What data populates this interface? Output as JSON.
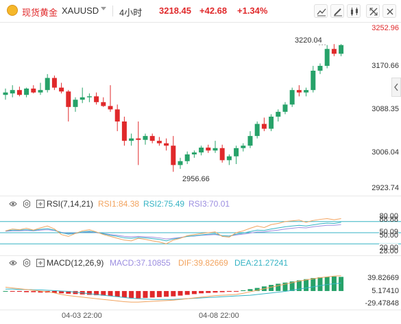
{
  "header": {
    "symbol_name": "现货黄金",
    "symbol_code": "XAUUSD",
    "timeframe": "4小时",
    "price": "3218.45",
    "change": "+42.68",
    "change_pct": "+1.34%",
    "colors": {
      "up": "#e0292b",
      "down": "#e0292b",
      "up_text": "#e0292b"
    }
  },
  "toolbar_icons": [
    "indicator-icon",
    "draw-icon",
    "candle-style-icon",
    "expand-icon",
    "close-icon"
  ],
  "price_axis": [
    "3252.96",
    "3170.66",
    "3088.35",
    "3006.04",
    "2923.74"
  ],
  "annotations": {
    "high": "3220.04",
    "low": "2956.66"
  },
  "rsi": {
    "title": "RSI(7,14,21)",
    "rsi1": "RSI1:84.38",
    "rsi2": "RSI2:75.49",
    "rsi3": "RSI3:70.01",
    "levels": [
      "80.00",
      "88.88",
      "50.09",
      "50.00",
      "20.00",
      "28.00"
    ],
    "colors": {
      "rsi1": "#f2a35e",
      "rsi2": "#35b3c4",
      "rsi3": "#9b8de0"
    }
  },
  "macd": {
    "title": "MACD(12,26,9)",
    "macd_label": "MACD:37.10855",
    "dif_label": "DIF:39.82669",
    "dea_label": "DEA:21.27241",
    "axis": [
      "39.82669",
      "5.17410",
      "-29.47848"
    ],
    "colors": {
      "macd": "#9b8de0",
      "dif": "#f2a35e",
      "dea": "#35b3c4"
    }
  },
  "x_axis": [
    "04-03 22:00",
    "04-08 22:00"
  ],
  "chart_data": {
    "type": "candlestick",
    "ylim": [
      2923.74,
      3252.96
    ],
    "candles": [
      {
        "o": 3115,
        "h": 3128,
        "l": 3105,
        "c": 3120
      },
      {
        "o": 3118,
        "h": 3135,
        "l": 3110,
        "c": 3125
      },
      {
        "o": 3125,
        "h": 3132,
        "l": 3112,
        "c": 3115
      },
      {
        "o": 3115,
        "h": 3130,
        "l": 3110,
        "c": 3128
      },
      {
        "o": 3128,
        "h": 3135,
        "l": 3118,
        "c": 3120
      },
      {
        "o": 3120,
        "h": 3140,
        "l": 3115,
        "c": 3125
      },
      {
        "o": 3125,
        "h": 3158,
        "l": 3120,
        "c": 3150
      },
      {
        "o": 3150,
        "h": 3155,
        "l": 3125,
        "c": 3130
      },
      {
        "o": 3130,
        "h": 3140,
        "l": 3118,
        "c": 3122
      },
      {
        "o": 3122,
        "h": 3125,
        "l": 3060,
        "c": 3090
      },
      {
        "o": 3090,
        "h": 3110,
        "l": 3080,
        "c": 3105
      },
      {
        "o": 3105,
        "h": 3130,
        "l": 3098,
        "c": 3110
      },
      {
        "o": 3110,
        "h": 3118,
        "l": 3100,
        "c": 3112
      },
      {
        "o": 3112,
        "h": 3120,
        "l": 3095,
        "c": 3100
      },
      {
        "o": 3100,
        "h": 3110,
        "l": 3090,
        "c": 3092
      },
      {
        "o": 3092,
        "h": 3135,
        "l": 3080,
        "c": 3085
      },
      {
        "o": 3085,
        "h": 3095,
        "l": 3040,
        "c": 3060
      },
      {
        "o": 3060,
        "h": 3070,
        "l": 3010,
        "c": 3020
      },
      {
        "o": 3020,
        "h": 3035,
        "l": 3010,
        "c": 3025
      },
      {
        "o": 3025,
        "h": 3060,
        "l": 2970,
        "c": 3022
      },
      {
        "o": 3022,
        "h": 3035,
        "l": 3012,
        "c": 3030
      },
      {
        "o": 3030,
        "h": 3035,
        "l": 3015,
        "c": 3020
      },
      {
        "o": 3020,
        "h": 3028,
        "l": 3010,
        "c": 3015
      },
      {
        "o": 3015,
        "h": 3025,
        "l": 3000,
        "c": 3010
      },
      {
        "o": 3010,
        "h": 3030,
        "l": 2956,
        "c": 2970
      },
      {
        "o": 2970,
        "h": 2985,
        "l": 2962,
        "c": 2978
      },
      {
        "o": 2978,
        "h": 2998,
        "l": 2972,
        "c": 2992
      },
      {
        "o": 2992,
        "h": 3000,
        "l": 2985,
        "c": 2996
      },
      {
        "o": 2996,
        "h": 3010,
        "l": 2990,
        "c": 3006
      },
      {
        "o": 3006,
        "h": 3012,
        "l": 2995,
        "c": 3000
      },
      {
        "o": 3000,
        "h": 3020,
        "l": 2995,
        "c": 3005
      },
      {
        "o": 3005,
        "h": 3012,
        "l": 2975,
        "c": 2980
      },
      {
        "o": 2980,
        "h": 2992,
        "l": 2970,
        "c": 2988
      },
      {
        "o": 2988,
        "h": 3010,
        "l": 2972,
        "c": 3005
      },
      {
        "o": 3005,
        "h": 3015,
        "l": 2998,
        "c": 3010
      },
      {
        "o": 3010,
        "h": 3040,
        "l": 3005,
        "c": 3030
      },
      {
        "o": 3030,
        "h": 3060,
        "l": 3025,
        "c": 3055
      },
      {
        "o": 3055,
        "h": 3068,
        "l": 3040,
        "c": 3045
      },
      {
        "o": 3045,
        "h": 3075,
        "l": 3040,
        "c": 3070
      },
      {
        "o": 3070,
        "h": 3085,
        "l": 3060,
        "c": 3080
      },
      {
        "o": 3080,
        "h": 3100,
        "l": 3075,
        "c": 3095
      },
      {
        "o": 3095,
        "h": 3130,
        "l": 3090,
        "c": 3125
      },
      {
        "o": 3125,
        "h": 3135,
        "l": 3112,
        "c": 3120
      },
      {
        "o": 3120,
        "h": 3130,
        "l": 3112,
        "c": 3125
      },
      {
        "o": 3125,
        "h": 3175,
        "l": 3120,
        "c": 3165
      },
      {
        "o": 3165,
        "h": 3180,
        "l": 3158,
        "c": 3175
      },
      {
        "o": 3175,
        "h": 3218,
        "l": 3170,
        "c": 3210
      },
      {
        "o": 3210,
        "h": 3220,
        "l": 3195,
        "c": 3200
      },
      {
        "o": 3200,
        "h": 3220,
        "l": 3195,
        "c": 3218
      }
    ],
    "rsi": {
      "ylim": [
        0,
        100
      ],
      "rsi1": [
        55,
        60,
        58,
        62,
        57,
        63,
        68,
        60,
        45,
        40,
        48,
        55,
        58,
        52,
        45,
        40,
        35,
        30,
        28,
        35,
        32,
        28,
        25,
        20,
        30,
        35,
        42,
        45,
        48,
        50,
        52,
        40,
        38,
        50,
        55,
        62,
        68,
        64,
        72,
        75,
        80,
        82,
        84,
        78,
        83,
        86,
        88,
        85,
        88
      ],
      "rsi2": [
        55,
        57,
        57,
        58,
        56,
        59,
        61,
        57,
        50,
        46,
        48,
        52,
        54,
        51,
        47,
        43,
        40,
        36,
        35,
        37,
        36,
        34,
        32,
        28,
        33,
        36,
        40,
        42,
        44,
        46,
        47,
        42,
        41,
        46,
        49,
        53,
        57,
        56,
        60,
        63,
        66,
        68,
        70,
        68,
        71,
        74,
        76,
        75,
        78
      ],
      "rsi3": [
        54,
        55,
        55,
        56,
        55,
        57,
        58,
        56,
        51,
        48,
        49,
        51,
        52,
        50,
        48,
        45,
        43,
        40,
        39,
        40,
        39,
        38,
        36,
        33,
        35,
        37,
        40,
        41,
        43,
        44,
        45,
        42,
        41,
        44,
        46,
        49,
        52,
        52,
        55,
        57,
        60,
        62,
        64,
        63,
        66,
        68,
        70,
        70,
        72
      ]
    },
    "macd_data": {
      "ylim": [
        -45,
        52
      ],
      "hist": [
        0,
        -1,
        -2,
        -3,
        -3,
        -4,
        -4,
        -5,
        -6,
        -7,
        -8,
        -9,
        -10,
        -11,
        -12,
        -13,
        -15,
        -17,
        -18,
        -19,
        -18,
        -17,
        -16,
        -15,
        -14,
        -12,
        -10,
        -8,
        -6,
        -5,
        -4,
        -3,
        -2,
        -1,
        2,
        5,
        8,
        12,
        16,
        19,
        22,
        25,
        28,
        31,
        34,
        36,
        37,
        38,
        37
      ],
      "dif": [
        10,
        8,
        6,
        4,
        2,
        0,
        -2,
        -5,
        -9,
        -12,
        -14,
        -16,
        -18,
        -20,
        -22,
        -24,
        -26,
        -28,
        -29,
        -29,
        -28,
        -27,
        -26,
        -25,
        -24,
        -22,
        -20,
        -18,
        -16,
        -14,
        -12,
        -11,
        -10,
        -9,
        -6,
        -2,
        2,
        6,
        10,
        14,
        18,
        22,
        26,
        29,
        32,
        35,
        37,
        39,
        40
      ],
      "dea": [
        5,
        5,
        4,
        4,
        3,
        3,
        2,
        1,
        0,
        -1,
        -3,
        -5,
        -7,
        -9,
        -11,
        -13,
        -15,
        -17,
        -19,
        -20,
        -21,
        -22,
        -22,
        -22,
        -22,
        -21,
        -20,
        -19,
        -18,
        -17,
        -16,
        -15,
        -14,
        -13,
        -12,
        -11,
        -9,
        -7,
        -5,
        -3,
        -1,
        2,
        5,
        8,
        11,
        14,
        17,
        19,
        21
      ]
    }
  }
}
